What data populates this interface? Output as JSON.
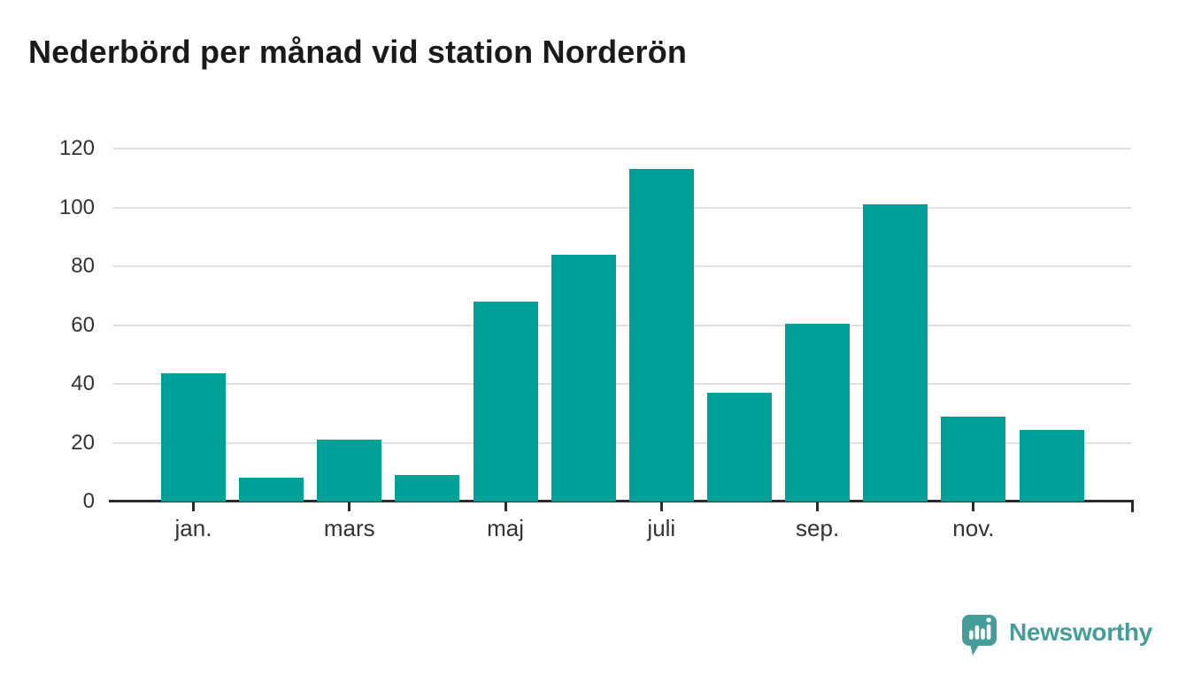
{
  "title": "Nederbörd per månad vid station Norderön",
  "chart_data": {
    "type": "bar",
    "title": "Nederbörd per månad vid station Norderön",
    "n_bars": 12,
    "values": [
      43.5,
      8,
      21,
      9,
      68,
      84,
      113,
      37,
      60.5,
      101,
      29,
      24.5
    ],
    "x_tick_labels": [
      "jan.",
      "mars",
      "maj",
      "juli",
      "sep.",
      "nov."
    ],
    "x_tick_month_index": [
      0,
      2,
      4,
      6,
      8,
      10
    ],
    "y_ticks": [
      0,
      20,
      40,
      60,
      80,
      100,
      120
    ],
    "ylim": [
      0,
      120
    ],
    "xlabel": "",
    "ylabel": "",
    "grid": "horizontal",
    "legend": "none",
    "bar_color": "#00a099"
  },
  "colors": {
    "bar": "#00a099",
    "grid": "#e0e0e0",
    "axis": "#2b2b2b",
    "tick_label": "#333333",
    "title": "#1a1a1a",
    "brand": "#459c99"
  },
  "branding": {
    "logo_text": "Newsworthy",
    "logo_icon": "speech-bubble-bar-chart-icon"
  }
}
